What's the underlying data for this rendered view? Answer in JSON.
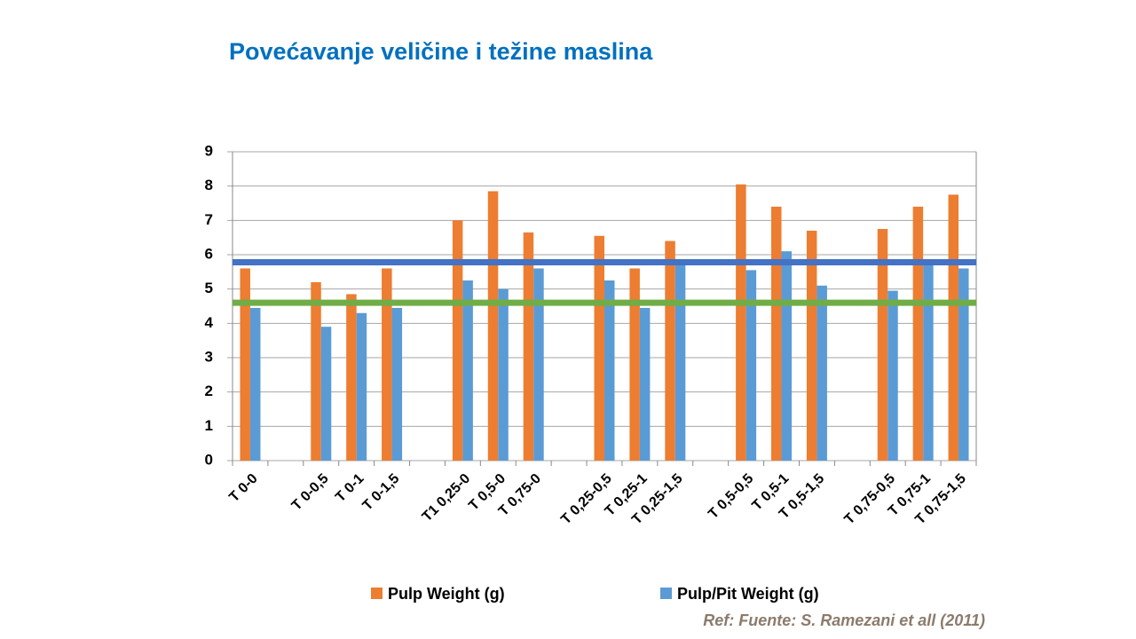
{
  "chart_data": {
    "type": "bar",
    "title": "Povećavanje veličine i težine maslina",
    "annotation": "Ref: Fuente: S. Ramezani et all (2011)",
    "categories": [
      "T 0-0",
      null,
      "T 0-0,5",
      "T 0-1",
      "T 0-1,5",
      null,
      "T1  0,25-0",
      "T 0,5-0",
      "T 0,75-0",
      null,
      "T 0,25-0,5",
      "T 0,25-1",
      "T 0,25-1,5",
      null,
      "T 0,5-0,5",
      "T 0,5-1",
      "T 0,5-1,5",
      null,
      "T 0,75-0,5",
      "T 0,75-1",
      "T 0,75-1,5"
    ],
    "series": [
      {
        "name": "Pulp Weight (g)",
        "color": "#ed7d31",
        "values": [
          5.6,
          null,
          5.2,
          4.85,
          5.6,
          null,
          7.0,
          7.85,
          6.65,
          null,
          6.55,
          5.6,
          6.4,
          null,
          8.05,
          7.4,
          6.7,
          null,
          6.75,
          7.4,
          7.75
        ]
      },
      {
        "name": "Pulp/Pit Weight (g)",
        "color": "#5b9bd5",
        "values": [
          4.45,
          null,
          3.9,
          4.3,
          4.45,
          null,
          5.25,
          5.0,
          5.6,
          null,
          5.25,
          4.45,
          5.8,
          null,
          5.55,
          6.1,
          5.1,
          null,
          4.95,
          5.75,
          5.6
        ]
      }
    ],
    "reference_lines": [
      {
        "value": 5.78,
        "color": "#4472c4"
      },
      {
        "value": 4.6,
        "color": "#70ad47"
      }
    ],
    "ylim": [
      0,
      9
    ],
    "yticks": [
      0,
      1,
      2,
      3,
      4,
      5,
      6,
      7,
      8,
      9
    ],
    "grid": true
  }
}
